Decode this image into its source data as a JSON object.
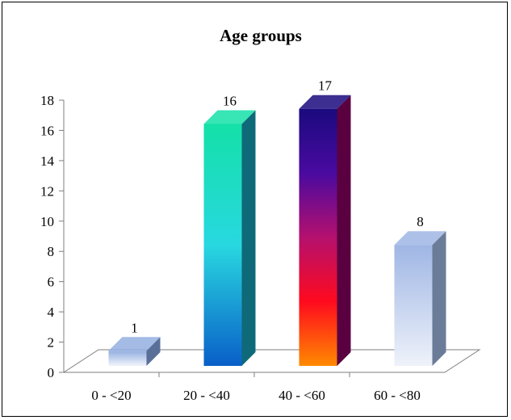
{
  "chart_data": {
    "type": "bar",
    "title": "Age groups",
    "xlabel": "",
    "ylabel": "",
    "categories": [
      "0 - <20",
      "20 - <40",
      "40 - <60",
      "60 - <80"
    ],
    "values": [
      1,
      16,
      17,
      8
    ],
    "ylim": [
      0,
      18
    ],
    "yticks": [
      "0",
      "2",
      "4",
      "6",
      "8",
      "10",
      "12",
      "14",
      "16",
      "18"
    ],
    "data_labels": [
      "1",
      "16",
      "17",
      "8"
    ],
    "grid": false,
    "legend": "none",
    "style": "3d-column",
    "bar_gradients": [
      [
        "#f0f4fb",
        "#93afe0"
      ],
      [
        "#0a5fc8",
        "#28d8e0",
        "#14e0a8"
      ],
      [
        "#ff8a00",
        "#ff0a1e",
        "#b4106e",
        "#4a0aa0",
        "#1a0a7e"
      ],
      [
        "#eef2fa",
        "#9fb6e4"
      ]
    ],
    "bar_side_colors": [
      "#5a6f98",
      "#0e6a78",
      "#5a0040",
      "#6a7c98"
    ]
  }
}
